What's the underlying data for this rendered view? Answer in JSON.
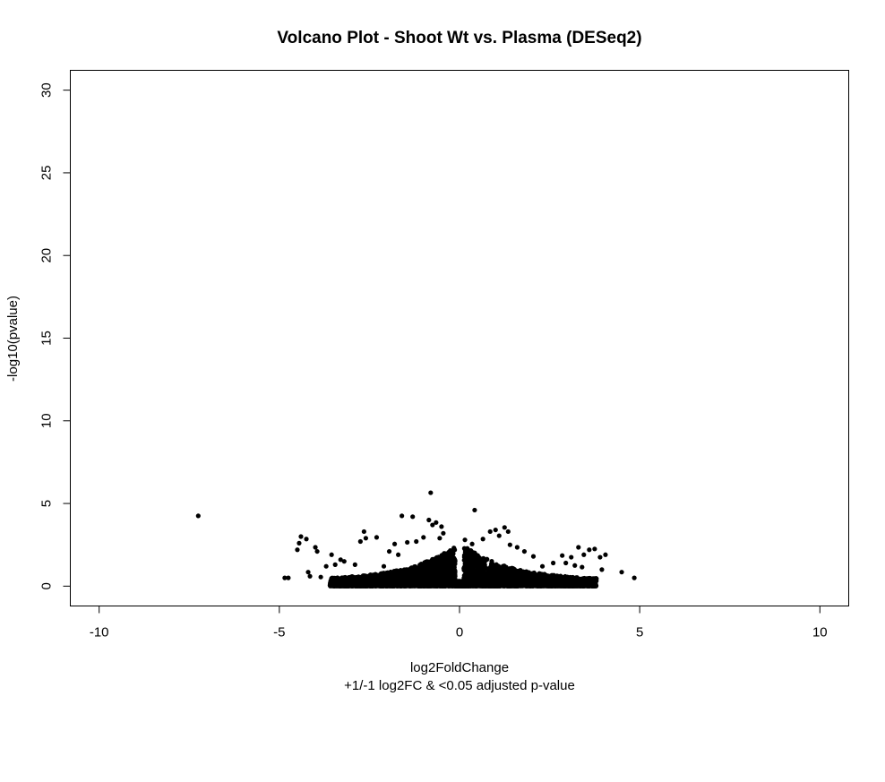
{
  "chart_data": {
    "type": "scatter",
    "title": "Volcano Plot - Shoot Wt vs. Plasma (DESeq2)",
    "xlabel": "log2FoldChange",
    "subtitle": "+1/-1 log2FC & <0.05 adjusted p-value",
    "ylabel": "-log10(pvalue)",
    "xlim": [
      -10.8,
      10.8
    ],
    "ylim": [
      -1.2,
      31.2
    ],
    "x_ticks": [
      -10,
      -5,
      0,
      5,
      10
    ],
    "x_tick_labels": [
      "-10",
      "-5",
      "0",
      "5",
      "10"
    ],
    "y_ticks": [
      0,
      5,
      10,
      15,
      20,
      25,
      30
    ],
    "y_tick_labels": [
      "0",
      "5",
      "10",
      "15",
      "20",
      "25",
      "30"
    ],
    "grid": false,
    "legend": "none",
    "point_color": "#000000",
    "points": [
      [
        -7.25,
        4.25
      ],
      [
        -0.8,
        5.65
      ],
      [
        0.42,
        4.6
      ],
      [
        -1.6,
        4.25
      ],
      [
        -1.3,
        4.2
      ],
      [
        -0.85,
        4.0
      ],
      [
        -0.65,
        3.85
      ],
      [
        -0.75,
        3.7
      ],
      [
        -0.5,
        3.6
      ],
      [
        1.25,
        3.55
      ],
      [
        -4.4,
        3.0
      ],
      [
        -4.25,
        2.85
      ],
      [
        -4.45,
        2.6
      ],
      [
        -4.5,
        2.2
      ],
      [
        -4.0,
        2.35
      ],
      [
        -3.95,
        2.1
      ],
      [
        -2.65,
        3.3
      ],
      [
        -2.6,
        2.9
      ],
      [
        -2.75,
        2.7
      ],
      [
        -2.3,
        2.95
      ],
      [
        -1.8,
        2.55
      ],
      [
        -1.45,
        2.65
      ],
      [
        -1.2,
        2.7
      ],
      [
        -1.0,
        2.95
      ],
      [
        -0.45,
        3.2
      ],
      [
        -0.55,
        2.9
      ],
      [
        0.15,
        2.8
      ],
      [
        0.35,
        2.55
      ],
      [
        0.85,
        3.3
      ],
      [
        1.0,
        3.4
      ],
      [
        1.1,
        3.05
      ],
      [
        1.35,
        3.3
      ],
      [
        0.65,
        2.85
      ],
      [
        1.4,
        2.5
      ],
      [
        1.6,
        2.35
      ],
      [
        3.3,
        2.35
      ],
      [
        3.6,
        2.2
      ],
      [
        3.75,
        2.25
      ],
      [
        4.05,
        1.9
      ],
      [
        3.9,
        1.75
      ],
      [
        3.45,
        1.9
      ],
      [
        3.1,
        1.75
      ],
      [
        2.85,
        1.85
      ],
      [
        -4.85,
        0.5
      ],
      [
        -4.75,
        0.5
      ],
      [
        4.5,
        0.85
      ],
      [
        4.85,
        0.5
      ],
      [
        3.8,
        0.45
      ],
      [
        3.65,
        0.45
      ],
      [
        3.95,
        1.0
      ],
      [
        -3.55,
        1.9
      ],
      [
        -3.3,
        1.6
      ],
      [
        -3.2,
        1.5
      ],
      [
        -3.7,
        1.2
      ],
      [
        -4.2,
        0.85
      ],
      [
        -4.15,
        0.6
      ],
      [
        -3.85,
        0.55
      ],
      [
        -3.45,
        1.3
      ],
      [
        -2.9,
        1.3
      ],
      [
        -2.1,
        1.2
      ],
      [
        2.3,
        1.2
      ],
      [
        2.6,
        1.4
      ],
      [
        2.95,
        1.4
      ],
      [
        3.2,
        1.25
      ],
      [
        3.4,
        1.15
      ],
      [
        -1.95,
        2.1
      ],
      [
        -1.7,
        1.9
      ],
      [
        1.8,
        2.1
      ],
      [
        2.05,
        1.8
      ]
    ],
    "cloud": {
      "description": "dense cloud of many small black points near the origin",
      "x_range": [
        -3.6,
        3.8
      ],
      "y_max_at_center": 2.3
    }
  }
}
